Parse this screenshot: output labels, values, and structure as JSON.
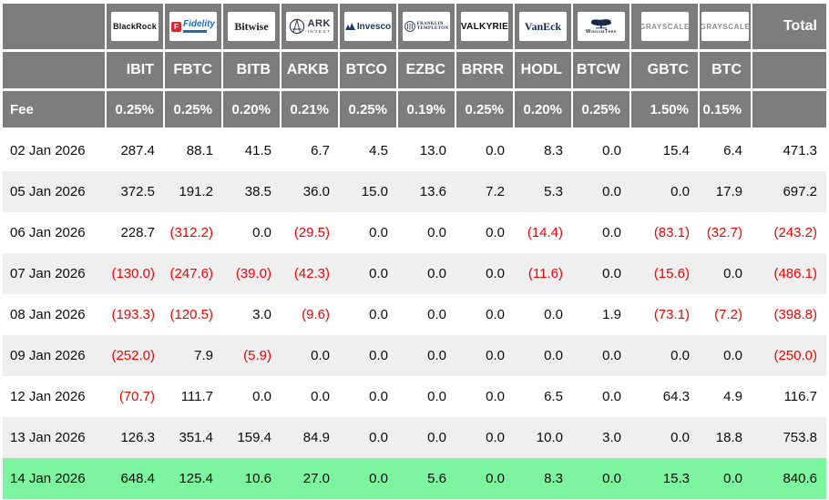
{
  "colors": {
    "header_bg": "#7d7d7d",
    "stripe_bg": "#efefef",
    "highlight_bg": "#7df59e",
    "negative_text": "#f60000",
    "header_text": "#ffffff"
  },
  "header": {
    "total_label": "Total",
    "fee_label": "Fee"
  },
  "providers": [
    {
      "name": "BlackRock",
      "logo": "blackrock",
      "logo_text": "BlackRock",
      "ticker": "IBIT",
      "fee": "0.25%"
    },
    {
      "name": "Fidelity",
      "logo": "fidelity",
      "logo_text": "Fidelity",
      "logo_mark": "F",
      "ticker": "FBTC",
      "fee": "0.25%"
    },
    {
      "name": "Bitwise",
      "logo": "bitwise",
      "logo_text": "Bitwise",
      "ticker": "BITB",
      "fee": "0.20%"
    },
    {
      "name": "ARK Invest",
      "logo": "ark",
      "logo_text": "ARK",
      "logo_sub": "INVEST",
      "ticker": "ARKB",
      "fee": "0.21%"
    },
    {
      "name": "Invesco",
      "logo": "invesco",
      "logo_text": "Invesco",
      "ticker": "BTCO",
      "fee": "0.25%"
    },
    {
      "name": "Franklin Templeton",
      "logo": "franklin",
      "logo_text": "FRANKLIN",
      "logo_sub": "TEMPLETON",
      "ticker": "EZBC",
      "fee": "0.19%"
    },
    {
      "name": "Valkyrie",
      "logo": "valkyrie",
      "logo_text": "VALKYRIE",
      "ticker": "BRRR",
      "fee": "0.25%"
    },
    {
      "name": "VanEck",
      "logo": "vaneck",
      "logo_text": "VanEck",
      "ticker": "HODL",
      "fee": "0.20%"
    },
    {
      "name": "WisdomTree",
      "logo": "wisdomtree",
      "logo_text": "WisdomTree",
      "ticker": "BTCW",
      "fee": "0.25%"
    },
    {
      "name": "Grayscale",
      "logo": "grayscale",
      "logo_text": "GRAYSCALE",
      "ticker": "GBTC",
      "fee": "1.50%"
    },
    {
      "name": "Grayscale",
      "logo": "grayscale",
      "logo_text": "GRAYSCALE",
      "ticker": "BTC",
      "fee": "0.15%"
    }
  ],
  "rows": [
    {
      "date": "02 Jan 2026",
      "values": [
        "287.4",
        "88.1",
        "41.5",
        "6.7",
        "4.5",
        "13.0",
        "0.0",
        "8.3",
        "0.0",
        "15.4",
        "6.4"
      ],
      "total": "471.3",
      "highlight": false
    },
    {
      "date": "05 Jan 2026",
      "values": [
        "372.5",
        "191.2",
        "38.5",
        "36.0",
        "15.0",
        "13.6",
        "7.2",
        "5.3",
        "0.0",
        "0.0",
        "17.9"
      ],
      "total": "697.2",
      "highlight": false
    },
    {
      "date": "06 Jan 2026",
      "values": [
        "228.7",
        "(312.2)",
        "0.0",
        "(29.5)",
        "0.0",
        "0.0",
        "0.0",
        "(14.4)",
        "0.0",
        "(83.1)",
        "(32.7)"
      ],
      "total": "(243.2)",
      "highlight": false
    },
    {
      "date": "07 Jan 2026",
      "values": [
        "(130.0)",
        "(247.6)",
        "(39.0)",
        "(42.3)",
        "0.0",
        "0.0",
        "0.0",
        "(11.6)",
        "0.0",
        "(15.6)",
        "0.0"
      ],
      "total": "(486.1)",
      "highlight": false
    },
    {
      "date": "08 Jan 2026",
      "values": [
        "(193.3)",
        "(120.5)",
        "3.0",
        "(9.6)",
        "0.0",
        "0.0",
        "0.0",
        "0.0",
        "1.9",
        "(73.1)",
        "(7.2)"
      ],
      "total": "(398.8)",
      "highlight": false
    },
    {
      "date": "09 Jan 2026",
      "values": [
        "(252.0)",
        "7.9",
        "(5.9)",
        "0.0",
        "0.0",
        "0.0",
        "0.0",
        "0.0",
        "0.0",
        "0.0",
        "0.0"
      ],
      "total": "(250.0)",
      "highlight": false
    },
    {
      "date": "12 Jan 2026",
      "values": [
        "(70.7)",
        "111.7",
        "0.0",
        "0.0",
        "0.0",
        "0.0",
        "0.0",
        "6.5",
        "0.0",
        "64.3",
        "4.9"
      ],
      "total": "116.7",
      "highlight": false
    },
    {
      "date": "13 Jan 2026",
      "values": [
        "126.3",
        "351.4",
        "159.4",
        "84.9",
        "0.0",
        "0.0",
        "0.0",
        "10.0",
        "3.0",
        "0.0",
        "18.8"
      ],
      "total": "753.8",
      "highlight": false
    },
    {
      "date": "14 Jan 2026",
      "values": [
        "648.4",
        "125.4",
        "10.6",
        "27.0",
        "0.0",
        "5.6",
        "0.0",
        "8.3",
        "0.0",
        "15.3",
        "0.0"
      ],
      "total": "840.6",
      "highlight": true
    }
  ]
}
